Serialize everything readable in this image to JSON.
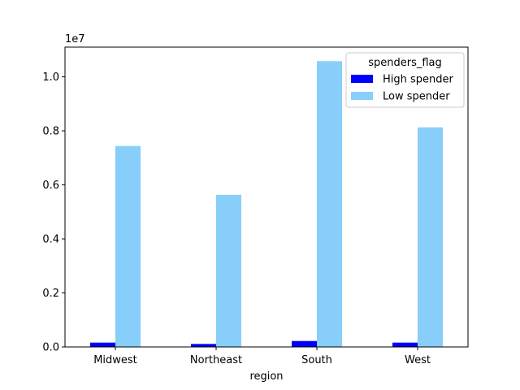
{
  "chart_data": {
    "type": "bar",
    "categories": [
      "Midwest",
      "Northeast",
      "South",
      "West"
    ],
    "series": [
      {
        "name": "High spender",
        "color": "#0000ff",
        "values": [
          160000,
          110000,
          220000,
          160000
        ]
      },
      {
        "name": "Low spender",
        "color": "#87cefa",
        "values": [
          7440000,
          5630000,
          10580000,
          8130000
        ]
      }
    ],
    "xlabel": "region",
    "ylabel": "",
    "ylim": [
      0,
      11100000
    ],
    "yticks": [
      0,
      2000000,
      4000000,
      6000000,
      8000000,
      10000000
    ],
    "ytick_labels": [
      "0.0",
      "0.2",
      "0.4",
      "0.6",
      "0.8",
      "1.0"
    ],
    "offset_text": "1e7",
    "legend": {
      "title": "spenders_flag",
      "placement": "top-right"
    },
    "grid": false
  }
}
